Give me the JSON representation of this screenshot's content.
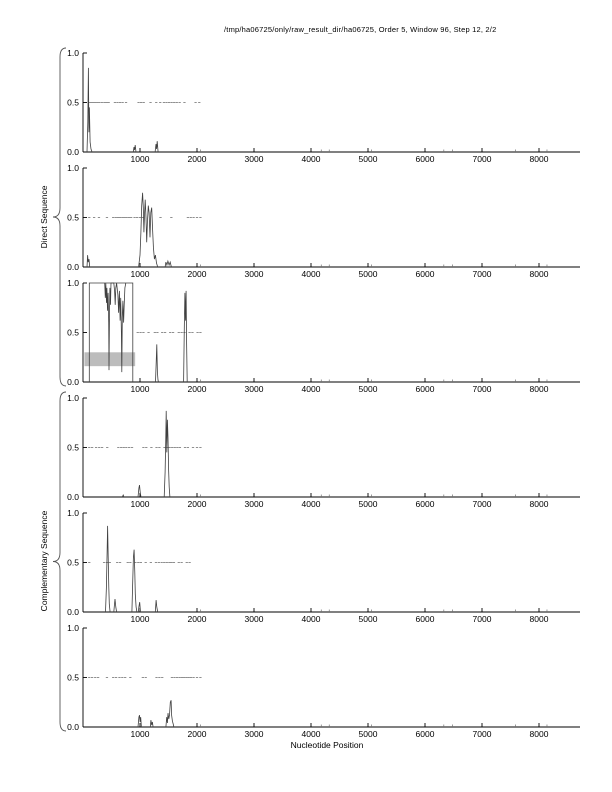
{
  "title": "/tmp/ha06725/only/raw_result_dir/ha06725, Order 5, Window 96, Step 12, 2/2",
  "xlabel": "Nucleotide Position",
  "group_labels": {
    "direct": "Direct Sequence",
    "complementary": "Complementary Sequence"
  },
  "colors": {
    "axis": "#000000",
    "curve": "#3f3f3f",
    "marker": "#8f8f8f",
    "gray_bar": "#bcbcbc",
    "micro": "#6f6f6f",
    "brace": "#555555"
  },
  "axis": {
    "xmin": 0,
    "xmax": 8719,
    "xticks": [
      1000,
      2000,
      3000,
      4000,
      5000,
      6000,
      7000,
      8000
    ],
    "yticks": [
      {
        "v": 0.0,
        "label": "0.0"
      },
      {
        "v": 0.5,
        "label": "0.5"
      },
      {
        "v": 1.0,
        "label": "1.0"
      }
    ]
  },
  "chart_data": {
    "type": "line",
    "title": "/tmp/ha06725/only/raw_result_dir/ha06725, Order 5, Window 96, Step 12, 2/2",
    "xlabel": "Nucleotide Position",
    "ylim": [
      0,
      1
    ],
    "xlim": [
      0,
      8719
    ],
    "micro_spikes": [
      2060,
      4180,
      4320,
      5060,
      6330,
      6480,
      7590,
      8140
    ],
    "panels": [
      {
        "name": "direct-frame-1",
        "group": "direct",
        "curves": [
          [
            [
              70,
              0
            ],
            [
              85,
              0.3
            ],
            [
              95,
              0.85
            ],
            [
              103,
              0.2
            ],
            [
              112,
              0.45
            ],
            [
              125,
              0.1
            ],
            [
              140,
              0.03
            ],
            [
              160,
              0
            ]
          ],
          [
            [
              880,
              0
            ],
            [
              895,
              0.05
            ],
            [
              905,
              0.02
            ],
            [
              915,
              0.07
            ],
            [
              930,
              0
            ]
          ],
          [
            [
              1265,
              0
            ],
            [
              1280,
              0.08
            ],
            [
              1292,
              0.03
            ],
            [
              1302,
              0.11
            ],
            [
              1318,
              0
            ]
          ]
        ],
        "markers": [
          125,
          155,
          185,
          215,
          250,
          285,
          330,
          375,
          415,
          450,
          560,
          605,
          650,
          695,
          755,
          975,
          1020,
          1065,
          1185,
          1285,
          1355,
          1420,
          1465,
          1510,
          1555,
          1600,
          1645,
          1695,
          1780,
          1975,
          2040
        ]
      },
      {
        "name": "direct-frame-2",
        "group": "direct",
        "curves": [
          [
            [
              70,
              0
            ],
            [
              80,
              0.12
            ],
            [
              92,
              0.05
            ],
            [
              105,
              0.08
            ],
            [
              118,
              0
            ]
          ],
          [
            [
              975,
              0
            ],
            [
              1000,
              0.12
            ],
            [
              1015,
              0.35
            ],
            [
              1030,
              0.62
            ],
            [
              1045,
              0.75
            ],
            [
              1058,
              0.6
            ],
            [
              1068,
              0.35
            ],
            [
              1080,
              0.55
            ],
            [
              1092,
              0.68
            ],
            [
              1105,
              0.5
            ],
            [
              1118,
              0.25
            ],
            [
              1130,
              0.45
            ],
            [
              1145,
              0.62
            ],
            [
              1160,
              0.55
            ],
            [
              1175,
              0.3
            ],
            [
              1190,
              0.55
            ],
            [
              1205,
              0.6
            ],
            [
              1220,
              0.4
            ],
            [
              1235,
              0.2
            ],
            [
              1252,
              0.08
            ],
            [
              1270,
              0.12
            ],
            [
              1290,
              0.04
            ],
            [
              1310,
              0
            ]
          ],
          [
            [
              1440,
              0
            ],
            [
              1455,
              0.05
            ],
            [
              1472,
              0.02
            ],
            [
              1490,
              0.06
            ],
            [
              1510,
              0.02
            ],
            [
              1530,
              0.05
            ],
            [
              1550,
              0
            ]
          ]
        ],
        "markers": [
          110,
          195,
          280,
          420,
          530,
          575,
          615,
          650,
          690,
          725,
          765,
          805,
          845,
          905,
          950,
          1000,
          1050,
          1360,
          1550,
          1840,
          1890,
          1940,
          2000,
          2060
        ]
      },
      {
        "name": "direct-frame-3",
        "group": "direct",
        "gray_bar": {
          "x1": 25,
          "x2": 915,
          "y1": 0.16,
          "y2": 0.3
        },
        "curves": [
          [
            [
              111,
              0
            ],
            [
              111,
              1
            ],
            [
              874,
              1
            ],
            [
              874,
              0
            ]
          ],
          [
            [
              380,
              1
            ],
            [
              392,
              0.85
            ],
            [
              400,
              1
            ],
            [
              412,
              0.8
            ],
            [
              420,
              0.95
            ],
            [
              430,
              0.72
            ],
            [
              440,
              0.9
            ],
            [
              450,
              0.6
            ],
            [
              457,
              0.12
            ],
            [
              465,
              0.7
            ],
            [
              472,
              0.95
            ],
            [
              482,
              0.78
            ],
            [
              492,
              1
            ],
            [
              540,
              1
            ],
            [
              555,
              0.92
            ],
            [
              565,
              0.78
            ],
            [
              575,
              0.95
            ],
            [
              590,
              1
            ],
            [
              612,
              0.88
            ],
            [
              625,
              0.7
            ],
            [
              638,
              0.92
            ],
            [
              650,
              0.62
            ],
            [
              662,
              0.85
            ],
            [
              673,
              0.5
            ],
            [
              681,
              0.1
            ],
            [
              690,
              0.65
            ],
            [
              700,
              0.82
            ],
            [
              712,
              0.6
            ],
            [
              722,
              0.78
            ],
            [
              735,
              0.95
            ],
            [
              750,
              1
            ]
          ],
          [
            [
              1272,
              0
            ],
            [
              1285,
              0.2
            ],
            [
              1295,
              0.38
            ],
            [
              1305,
              0.1
            ],
            [
              1315,
              0.02
            ],
            [
              1325,
              0
            ]
          ],
          [
            [
              1765,
              0
            ],
            [
              1778,
              0.55
            ],
            [
              1788,
              0.9
            ],
            [
              1798,
              0.62
            ],
            [
              1808,
              0.92
            ],
            [
              1818,
              0.4
            ],
            [
              1828,
              0
            ]
          ]
        ],
        "markers": [
          960,
          1010,
          1060,
          1150,
          1260,
          1305,
          1390,
          1440,
          1530,
          1580,
          1680,
          1730,
          1780,
          1870,
          1920,
          2010,
          2060
        ]
      },
      {
        "name": "complementary-frame-1",
        "group": "complementary",
        "curves": [
          [
            [
              690,
              0
            ],
            [
              705,
              0.02
            ],
            [
              720,
              0
            ]
          ],
          [
            [
              965,
              0
            ],
            [
              980,
              0.09
            ],
            [
              992,
              0.12
            ],
            [
              1005,
              0.04
            ],
            [
              1018,
              0
            ]
          ],
          [
            [
              1425,
              0
            ],
            [
              1440,
              0.25
            ],
            [
              1450,
              0.55
            ],
            [
              1460,
              0.87
            ],
            [
              1470,
              0.45
            ],
            [
              1480,
              0.78
            ],
            [
              1492,
              0.6
            ],
            [
              1502,
              0.28
            ],
            [
              1512,
              0.1
            ],
            [
              1525,
              0
            ]
          ]
        ],
        "markers": [
          110,
          160,
          230,
          285,
          335,
          425,
          620,
          670,
          715,
          760,
          810,
          860,
          1060,
          1110,
          1200,
          1290,
          1340,
          1430,
          1475,
          1520,
          1565,
          1610,
          1655,
          1700,
          1790,
          1840,
          1930,
          2000,
          2060
        ]
      },
      {
        "name": "complementary-frame-2",
        "group": "complementary",
        "curves": [
          [
            [
              395,
              0
            ],
            [
              410,
              0.25
            ],
            [
              422,
              0.6
            ],
            [
              432,
              0.87
            ],
            [
              442,
              0.55
            ],
            [
              452,
              0.25
            ],
            [
              462,
              0.08
            ],
            [
              475,
              0
            ]
          ],
          [
            [
              540,
              0
            ],
            [
              552,
              0.08
            ],
            [
              562,
              0.13
            ],
            [
              575,
              0.05
            ],
            [
              590,
              0
            ]
          ],
          [
            [
              858,
              0
            ],
            [
              872,
              0.3
            ],
            [
              885,
              0.55
            ],
            [
              897,
              0.63
            ],
            [
              908,
              0.4
            ],
            [
              918,
              0.18
            ],
            [
              932,
              0.05
            ],
            [
              945,
              0
            ]
          ],
          [
            [
              970,
              0
            ],
            [
              982,
              0.06
            ],
            [
              994,
              0.1
            ],
            [
              1008,
              0
            ]
          ],
          [
            [
              1268,
              0
            ],
            [
              1282,
              0.12
            ],
            [
              1295,
              0.05
            ],
            [
              1310,
              0
            ]
          ]
        ],
        "markers": [
          110,
          370,
          420,
          470,
          600,
          650,
          785,
          830,
          920,
          970,
          1015,
          1100,
          1190,
          1280,
          1330,
          1380,
          1425,
          1470,
          1515,
          1555,
          1595,
          1680,
          1730,
          1820,
          1870
        ]
      },
      {
        "name": "complementary-frame-3",
        "group": "complementary",
        "curves": [
          [
            [
              965,
              0
            ],
            [
              980,
              0.1
            ],
            [
              992,
              0.12
            ],
            [
              1002,
              0.05
            ],
            [
              1012,
              0.1
            ],
            [
              1025,
              0
            ]
          ],
          [
            [
              1180,
              0
            ],
            [
              1192,
              0.07
            ],
            [
              1205,
              0.02
            ],
            [
              1218,
              0.05
            ],
            [
              1230,
              0
            ]
          ],
          [
            [
              1455,
              0
            ],
            [
              1468,
              0.1
            ],
            [
              1480,
              0.04
            ],
            [
              1492,
              0.14
            ],
            [
              1505,
              0.08
            ],
            [
              1518,
              0.12
            ],
            [
              1532,
              0.25
            ],
            [
              1545,
              0.27
            ],
            [
              1555,
              0.12
            ],
            [
              1568,
              0.06
            ],
            [
              1582,
              0.03
            ],
            [
              1595,
              0
            ]
          ]
        ],
        "markers": [
          110,
          160,
          215,
          265,
          420,
          530,
          580,
          640,
          690,
          740,
          830,
          1050,
          1100,
          1290,
          1340,
          1390,
          1560,
          1605,
          1650,
          1695,
          1735,
          1775,
          1815,
          1855,
          1895,
          1940,
          2000,
          2060
        ]
      }
    ]
  }
}
